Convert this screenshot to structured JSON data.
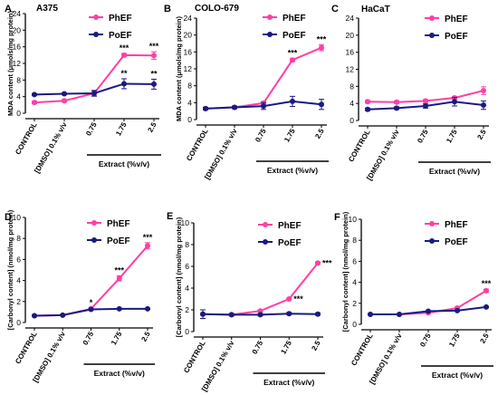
{
  "colors": {
    "PhEF": "#ff3fa4",
    "PoEF": "#1a1a80",
    "axis": "#000000"
  },
  "chart_data": [
    {
      "type": "line",
      "panel": "A",
      "title": "A375",
      "ylabel": "MDA content (μmols/mg protein)",
      "xlabel": "Extract (%v/v)",
      "ylim": [
        0,
        24
      ],
      "yticks": [
        0,
        4,
        8,
        12,
        16,
        20,
        24
      ],
      "categories": [
        "CONTROL",
        "[DMSO] 0.1% v/v",
        "0.75",
        "1.75",
        "2.5"
      ],
      "series": [
        {
          "name": "PhEF",
          "values": [
            2.6,
            3.0,
            4.8,
            14.0,
            13.9
          ],
          "errors": [
            0.3,
            0.3,
            0.5,
            0.4,
            0.9
          ]
        },
        {
          "name": "PoEF",
          "values": [
            4.5,
            4.7,
            4.8,
            7.1,
            7.0
          ],
          "errors": [
            0.2,
            0.2,
            0.7,
            1.2,
            1.2
          ]
        }
      ],
      "annotations": [
        {
          "series": "PhEF",
          "index": 3,
          "text": "***"
        },
        {
          "series": "PhEF",
          "index": 4,
          "text": "***"
        },
        {
          "series": "PoEF",
          "index": 3,
          "text": "**"
        },
        {
          "series": "PoEF",
          "index": 4,
          "text": "**"
        }
      ]
    },
    {
      "type": "line",
      "panel": "B",
      "title": "COLO-679",
      "ylabel": "MDA content (μmols/mg protein)",
      "xlabel": "Extract (%v/v)",
      "ylim": [
        0,
        24
      ],
      "yticks": [
        0,
        4,
        8,
        12,
        16,
        20,
        24
      ],
      "categories": [
        "CONTROL",
        "[DMSO] 0.1% v/v",
        "0.75",
        "1.75",
        "2.5"
      ],
      "series": [
        {
          "name": "PhEF",
          "values": [
            2.6,
            2.9,
            3.9,
            14.1,
            17.0
          ],
          "errors": [
            0.3,
            0.3,
            0.4,
            0.4,
            0.7
          ]
        },
        {
          "name": "PoEF",
          "values": [
            2.6,
            2.9,
            3.2,
            4.3,
            3.6
          ],
          "errors": [
            0.3,
            0.3,
            0.8,
            1.2,
            1.2
          ]
        }
      ],
      "annotations": [
        {
          "series": "PhEF",
          "index": 3,
          "text": "***"
        },
        {
          "series": "PhEF",
          "index": 4,
          "text": "***"
        }
      ]
    },
    {
      "type": "line",
      "panel": "C",
      "title": "HaCaT",
      "ylabel": "",
      "xlabel": "Extract (%v/v)",
      "ylim": [
        0,
        24
      ],
      "yticks": [
        0,
        4,
        8,
        12,
        16,
        20,
        24
      ],
      "categories": [
        "CONTROL",
        "[DMSO] 0.1% v/v",
        "0.75",
        "1.75",
        "2.5"
      ],
      "series": [
        {
          "name": "PhEF",
          "values": [
            4.4,
            4.3,
            4.6,
            5.3,
            7.0
          ],
          "errors": [
            0.3,
            0.3,
            0.3,
            0.3,
            0.9
          ]
        },
        {
          "name": "PoEF",
          "values": [
            2.6,
            2.9,
            3.4,
            4.4,
            3.6
          ],
          "errors": [
            0.3,
            0.3,
            0.5,
            1.0,
            1.0
          ]
        }
      ],
      "annotations": []
    },
    {
      "type": "line",
      "panel": "D",
      "title": "",
      "ylabel": "[Carbonyl content] (nmol/mg protein)",
      "xlabel": "Extract (%v/v)",
      "ylim": [
        0,
        10
      ],
      "yticks": [
        0,
        2,
        4,
        6,
        8,
        10
      ],
      "categories": [
        "CONTROL",
        "[DMSO] 0.1% v/v",
        "0.75",
        "1.75",
        "2.5"
      ],
      "series": [
        {
          "name": "PhEF",
          "values": [
            0.65,
            0.7,
            1.3,
            4.2,
            7.3
          ],
          "errors": [
            0.05,
            0.05,
            0.1,
            0.25,
            0.3
          ]
        },
        {
          "name": "PoEF",
          "values": [
            0.65,
            0.7,
            1.25,
            1.3,
            1.3
          ],
          "errors": [
            0.05,
            0.05,
            0.05,
            0.05,
            0.05
          ]
        }
      ],
      "annotations": [
        {
          "series": "PhEF",
          "index": 2,
          "text": "*"
        },
        {
          "series": "PhEF",
          "index": 3,
          "text": "***"
        },
        {
          "series": "PhEF",
          "index": 4,
          "text": "***"
        }
      ]
    },
    {
      "type": "line",
      "panel": "E",
      "title": "",
      "ylabel": "[Carbonyl content] (nmol/mg protein)",
      "xlabel": "Extract (%v/v)",
      "ylim": [
        0,
        10
      ],
      "yticks": [
        0,
        2,
        4,
        6,
        8,
        10
      ],
      "categories": [
        "CONTROL",
        "[DMSO] 0.1% v/v",
        "0.75",
        "1.75",
        "2.5"
      ],
      "series": [
        {
          "name": "PhEF",
          "values": [
            1.6,
            1.55,
            1.9,
            3.0,
            6.3
          ],
          "errors": [
            0.4,
            0.1,
            0.1,
            0.1,
            0.1
          ]
        },
        {
          "name": "PoEF",
          "values": [
            1.6,
            1.55,
            1.55,
            1.65,
            1.6
          ],
          "errors": [
            0.4,
            0.1,
            0.1,
            0.1,
            0.1
          ]
        }
      ],
      "annotations": [
        {
          "series": "PhEF",
          "index": 3,
          "text": "***",
          "position": "right"
        },
        {
          "series": "PhEF",
          "index": 4,
          "text": "***",
          "position": "right"
        }
      ]
    },
    {
      "type": "line",
      "panel": "F",
      "title": "",
      "ylabel": "[Carbonyl content] (nmol/mg protein)",
      "xlabel": "Extract (%v/v)",
      "ylim": [
        0,
        10
      ],
      "yticks": [
        0,
        2,
        4,
        6,
        8,
        10
      ],
      "categories": [
        "CONTROL",
        "[DMSO] 0.1% v/v",
        "0.75",
        "1.75",
        "2.5"
      ],
      "series": [
        {
          "name": "PhEF",
          "values": [
            0.95,
            0.95,
            1.1,
            1.55,
            3.2
          ],
          "errors": [
            0.05,
            0.05,
            0.05,
            0.1,
            0.15
          ]
        },
        {
          "name": "PoEF",
          "values": [
            0.95,
            0.95,
            1.25,
            1.3,
            1.65
          ],
          "errors": [
            0.05,
            0.05,
            0.05,
            0.05,
            0.05
          ]
        }
      ],
      "annotations": [
        {
          "series": "PhEF",
          "index": 4,
          "text": "***"
        }
      ]
    }
  ]
}
